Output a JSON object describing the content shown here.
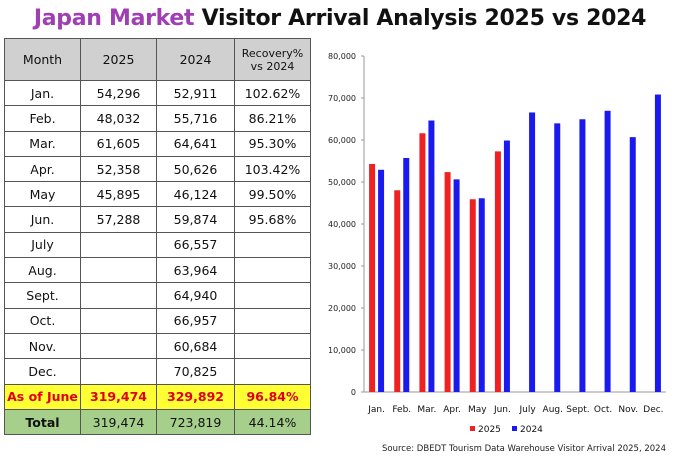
{
  "title": {
    "accent": "Japan Market",
    "rest": " Visitor Arrival Analysis 2025 vs 2024"
  },
  "table": {
    "headers": [
      "Month",
      "2025",
      "2024",
      "Recovery%",
      "vs 2024"
    ],
    "rows": [
      [
        "Jan.",
        "54,296",
        "52,911",
        "102.62%"
      ],
      [
        "Feb.",
        "48,032",
        "55,716",
        "86.21%"
      ],
      [
        "Mar.",
        "61,605",
        "64,641",
        "95.30%"
      ],
      [
        "Apr.",
        "52,358",
        "50,626",
        "103.42%"
      ],
      [
        "May",
        "45,895",
        "46,124",
        "99.50%"
      ],
      [
        "Jun.",
        "57,288",
        "59,874",
        "95.68%"
      ],
      [
        "July",
        "",
        "66,557",
        ""
      ],
      [
        "Aug.",
        "",
        "63,964",
        ""
      ],
      [
        "Sept.",
        "",
        "64,940",
        ""
      ],
      [
        "Oct.",
        "",
        "66,957",
        ""
      ],
      [
        "Nov.",
        "",
        "60,684",
        ""
      ],
      [
        "Dec.",
        "",
        "70,825",
        ""
      ]
    ],
    "as_of": [
      "As of June",
      "319,474",
      "329,892",
      "96.84%"
    ],
    "total": [
      "Total",
      "319,474",
      "723,819",
      "44.14%"
    ]
  },
  "chart_data": {
    "type": "bar",
    "categories": [
      "Jan.",
      "Feb.",
      "Mar.",
      "Apr.",
      "May",
      "Jun.",
      "July",
      "Aug.",
      "Sept.",
      "Oct.",
      "Nov.",
      "Dec."
    ],
    "series": [
      {
        "name": "2025",
        "color": "#ee2222",
        "values": [
          54296,
          48032,
          61605,
          52358,
          45895,
          57288,
          null,
          null,
          null,
          null,
          null,
          null
        ]
      },
      {
        "name": "2024",
        "color": "#1a1aee",
        "values": [
          52911,
          55716,
          64641,
          50626,
          46124,
          59874,
          66557,
          63964,
          64940,
          66957,
          60684,
          70825
        ]
      }
    ],
    "ylim": [
      0,
      80000
    ],
    "yticks": [
      "0",
      "10,000",
      "20,000",
      "30,000",
      "40,000",
      "50,000",
      "60,000",
      "70,000",
      "80,000"
    ],
    "grid": false,
    "legend_position": "bottom"
  },
  "source": "Source: DBEDT Tourism Data Warehouse Visitor Arrival 2025, 2024"
}
